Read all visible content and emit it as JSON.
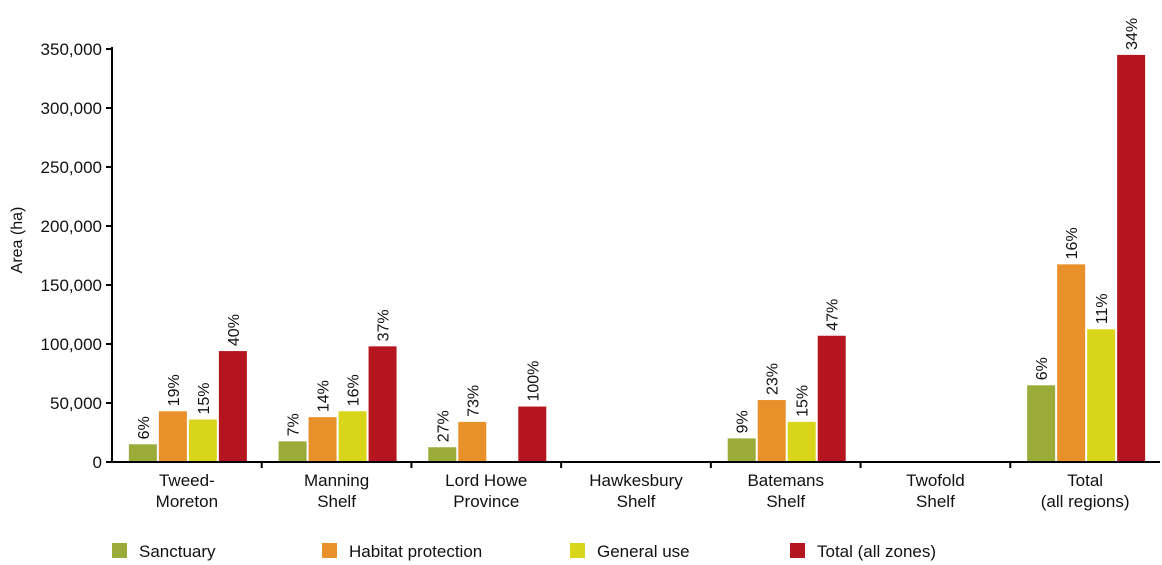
{
  "chart_data": {
    "type": "bar",
    "ylabel": "Area (ha)",
    "xlabel": "",
    "title": "",
    "ylim": [
      0,
      350000
    ],
    "yticks": [
      0,
      50000,
      100000,
      150000,
      200000,
      250000,
      300000,
      350000
    ],
    "ytick_labels": [
      "0",
      "50,000",
      "100,000",
      "150,000",
      "200,000",
      "250,000",
      "300,000",
      "350,000"
    ],
    "categories": [
      [
        "Tweed-",
        "Moreton"
      ],
      [
        "Manning",
        "Shelf"
      ],
      [
        "Lord Howe",
        "Province"
      ],
      [
        "Hawkesbury",
        "Shelf"
      ],
      [
        "Batemans",
        "Shelf"
      ],
      [
        "Twofold",
        "Shelf"
      ],
      [
        "Total",
        "(all regions)"
      ]
    ],
    "series": [
      {
        "name": "Sanctuary",
        "color": "#9aab3a",
        "values": [
          15000,
          17500,
          12500,
          null,
          20000,
          null,
          65000
        ],
        "labels": [
          "6%",
          "7%",
          "27%",
          null,
          "9%",
          null,
          "6%"
        ]
      },
      {
        "name": "Habitat protection",
        "color": "#e8912a",
        "values": [
          43000,
          38000,
          34000,
          null,
          52500,
          null,
          167500
        ],
        "labels": [
          "19%",
          "14%",
          "73%",
          null,
          "23%",
          null,
          "16%"
        ]
      },
      {
        "name": "General use",
        "color": "#d8d51a",
        "values": [
          36000,
          43000,
          null,
          null,
          34000,
          null,
          112500
        ],
        "labels": [
          "15%",
          "16%",
          null,
          null,
          "15%",
          null,
          "11%"
        ]
      },
      {
        "name": "Total (all zones)",
        "color": "#b5151f",
        "values": [
          94000,
          98000,
          47000,
          null,
          107000,
          null,
          345000
        ],
        "labels": [
          "40%",
          "37%",
          "100%",
          null,
          "47%",
          null,
          "34%"
        ]
      }
    ],
    "legend_position": "bottom",
    "grid": false
  }
}
